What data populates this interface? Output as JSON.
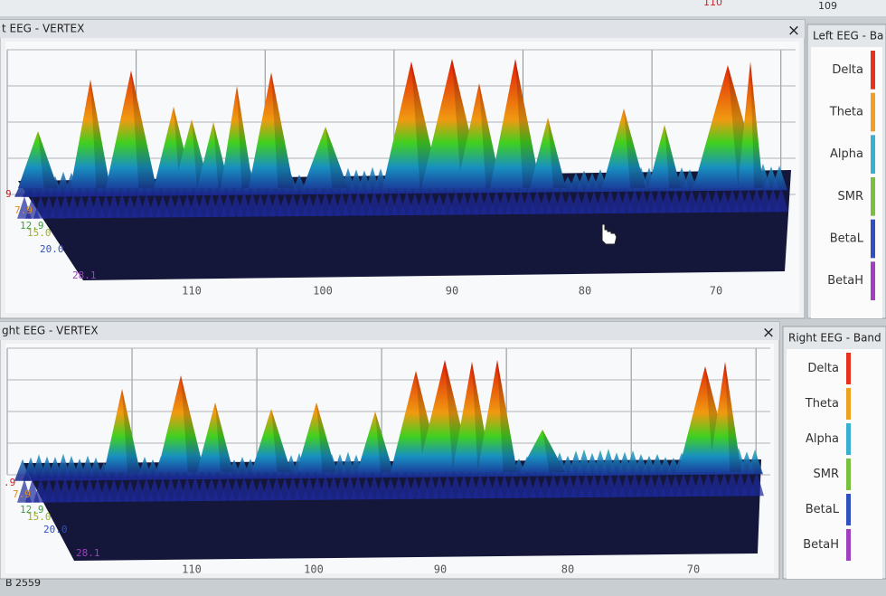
{
  "top_bar": {
    "left_label": "110",
    "right_label": "109"
  },
  "panels": [
    {
      "title": "t EEG - VERTEX",
      "close": "×",
      "x_ticks": [
        "110",
        "100",
        "90",
        "80",
        "70"
      ],
      "depth_labels": [
        "9",
        "7.9",
        "12.9",
        "15.0",
        "20.0",
        "28.1"
      ],
      "legend": {
        "title": "Left EEG - Ba",
        "bands": [
          {
            "name": "Delta",
            "color": "#e8321e"
          },
          {
            "name": "Theta",
            "color": "#f0a020"
          },
          {
            "name": "Alpha",
            "color": "#3ab0d0"
          },
          {
            "name": "SMR",
            "color": "#7ac040"
          },
          {
            "name": "BetaL",
            "color": "#3050c0"
          },
          {
            "name": "BetaH",
            "color": "#a040c0"
          }
        ]
      }
    },
    {
      "title": "ght EEG - VERTEX",
      "close": "×",
      "x_ticks": [
        "110",
        "100",
        "90",
        "80",
        "70"
      ],
      "depth_labels": [
        ".9",
        "7.9",
        "12.9",
        "15.0",
        "20.0",
        "28.1"
      ],
      "legend": {
        "title": "Right EEG - Band",
        "bands": [
          {
            "name": "Delta",
            "color": "#e8321e"
          },
          {
            "name": "Theta",
            "color": "#f0a020"
          },
          {
            "name": "Alpha",
            "color": "#3ab0d0"
          },
          {
            "name": "SMR",
            "color": "#7ac040"
          },
          {
            "name": "BetaL",
            "color": "#3050c0"
          },
          {
            "name": "BetaH",
            "color": "#a040c0"
          }
        ]
      }
    }
  ],
  "status": "B 2559"
}
